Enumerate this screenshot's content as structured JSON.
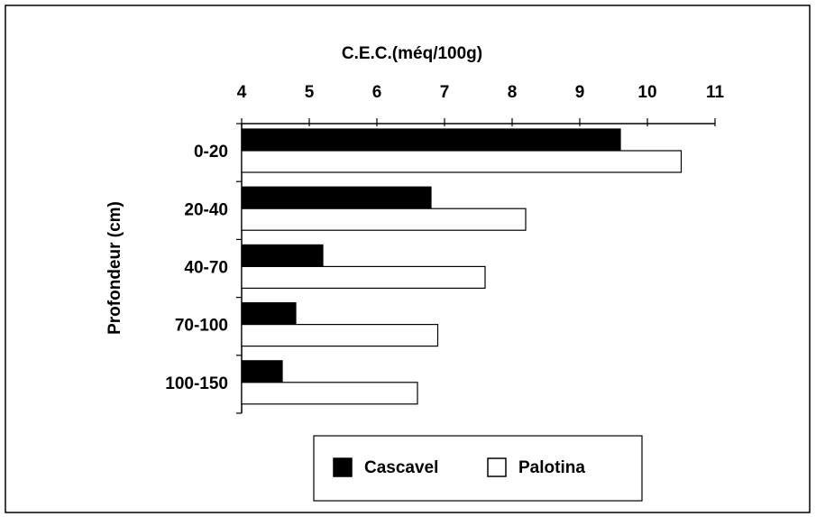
{
  "chart_data": {
    "type": "barh",
    "title": "C.E.C.(méq/100g)",
    "y_label": "Profondeur (cm)",
    "categories": [
      "0-20",
      "20-40",
      "40-70",
      "70-100",
      "100-150"
    ],
    "series": [
      {
        "name": "Cascavel",
        "color": "#000000",
        "values": [
          9.6,
          6.8,
          5.2,
          4.8,
          4.6
        ]
      },
      {
        "name": "Palotina",
        "color": "#ffffff",
        "values": [
          10.5,
          8.2,
          7.6,
          6.9,
          6.6
        ]
      }
    ],
    "xlim": [
      4,
      11
    ],
    "xticks": [
      4,
      5,
      6,
      7,
      8,
      9,
      10,
      11
    ],
    "legend": "bottom"
  }
}
